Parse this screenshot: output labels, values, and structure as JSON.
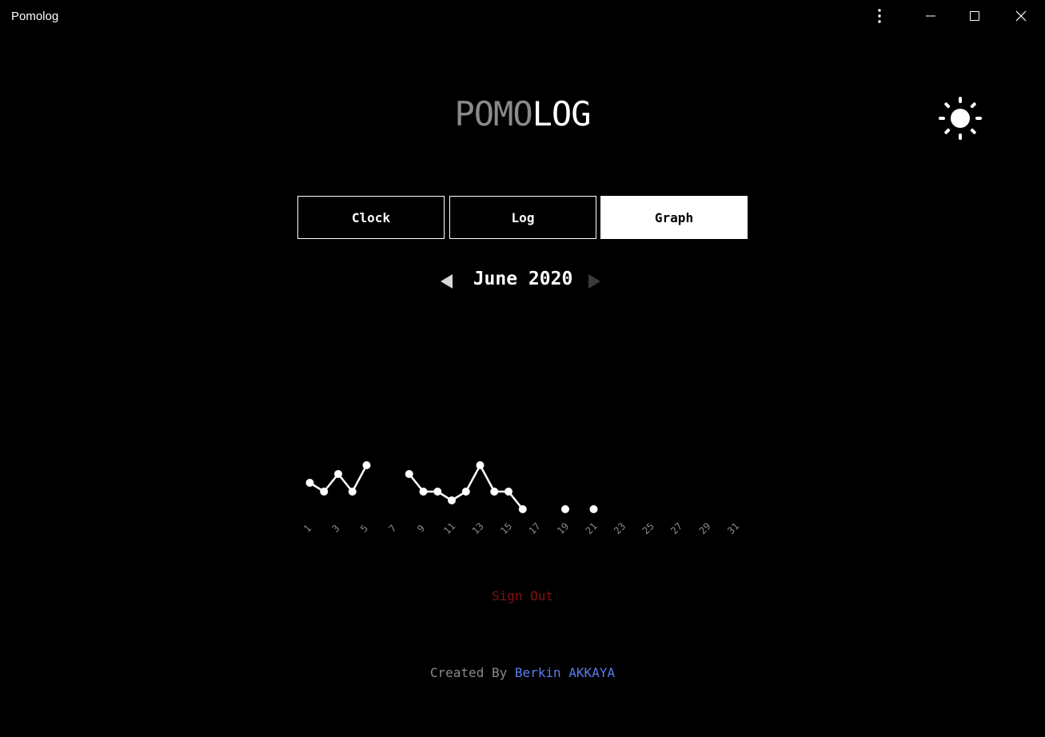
{
  "window": {
    "title": "Pomolog",
    "controls": [
      "more-icon",
      "minimize-icon",
      "maximize-icon",
      "close-icon"
    ]
  },
  "logo": {
    "part1": "POMO",
    "part2": "LOG"
  },
  "theme_toggle": {
    "icon": "sun-icon"
  },
  "tabs": [
    {
      "label": "Clock",
      "active": false
    },
    {
      "label": "Log",
      "active": false
    },
    {
      "label": "Graph",
      "active": true
    }
  ],
  "month_nav": {
    "label": "June 2020",
    "prev_icon": "triangle-left-icon",
    "next_icon": "triangle-right-icon"
  },
  "chart_data": {
    "type": "line",
    "x_ticks": [
      "1",
      "3",
      "5",
      "7",
      "9",
      "11",
      "13",
      "15",
      "17",
      "19",
      "21",
      "23",
      "25",
      "27",
      "29",
      "31"
    ],
    "xlim": [
      1,
      31
    ],
    "points": [
      {
        "day": 1,
        "value": 3
      },
      {
        "day": 2,
        "value": 2
      },
      {
        "day": 3,
        "value": 4
      },
      {
        "day": 4,
        "value": 2
      },
      {
        "day": 5,
        "value": 5
      },
      {
        "day": 8,
        "value": 4
      },
      {
        "day": 9,
        "value": 2
      },
      {
        "day": 10,
        "value": 2
      },
      {
        "day": 11,
        "value": 1
      },
      {
        "day": 12,
        "value": 2
      },
      {
        "day": 13,
        "value": 5
      },
      {
        "day": 14,
        "value": 2
      },
      {
        "day": 15,
        "value": 2
      },
      {
        "day": 16,
        "value": 0
      },
      {
        "day": 19,
        "value": 0
      },
      {
        "day": 21,
        "value": 0
      }
    ],
    "segments": [
      [
        1,
        2,
        3,
        4,
        5
      ],
      [
        8,
        9,
        10,
        11,
        12,
        13,
        14,
        15,
        16
      ],
      [
        19
      ],
      [
        21
      ]
    ],
    "colors": {
      "line": "#ffffff",
      "ticks": "#8a8a8a"
    }
  },
  "sign_out": {
    "label": "Sign Out",
    "color": "#8b0f0f"
  },
  "footer": {
    "prefix": "Created By ",
    "author": "Berkin AKKAYA",
    "author_color": "#5b7cf0"
  }
}
